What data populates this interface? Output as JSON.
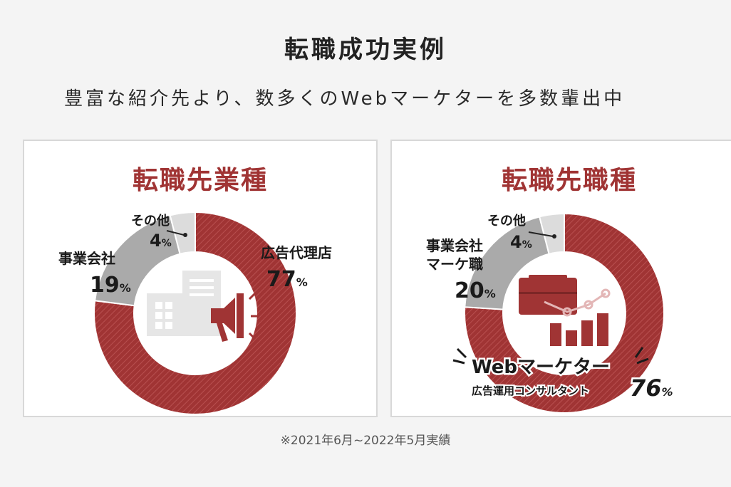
{
  "page": {
    "title": "転職成功実例",
    "subtitle": "豊富な紹介先より、数多くのWebマーケターを多数輩出中",
    "footnote": "※2021年6月~2022年5月実績"
  },
  "colors": {
    "main": "#a03434",
    "second": "#aaaaaa",
    "third": "#dcdcdc",
    "icon": "#e6e6e6"
  },
  "chart_data": [
    {
      "type": "pie",
      "title": "転職先業種",
      "slices": [
        {
          "label": "広告代理店",
          "value": 77,
          "value_text": "77",
          "unit": "%"
        },
        {
          "label": "事業会社",
          "value": 19,
          "value_text": "19",
          "unit": "%"
        },
        {
          "label": "その他",
          "value": 4,
          "value_text": "4",
          "unit": "%"
        }
      ]
    },
    {
      "type": "pie",
      "title": "転職先職種",
      "slices": [
        {
          "label": "Webマーケター",
          "sublabel": "広告運用コンサルタント",
          "value": 76,
          "value_text": "76",
          "unit": "%"
        },
        {
          "label": "事業会社",
          "label_line2": "マーケ職",
          "value": 20,
          "value_text": "20",
          "unit": "%"
        },
        {
          "label": "その他",
          "value": 4,
          "value_text": "4",
          "unit": "%"
        }
      ]
    }
  ],
  "icons": {
    "left": [
      "building-icon",
      "megaphone-icon"
    ],
    "right": [
      "briefcase-icon",
      "bar-chart-icon",
      "trend-line-icon"
    ]
  }
}
